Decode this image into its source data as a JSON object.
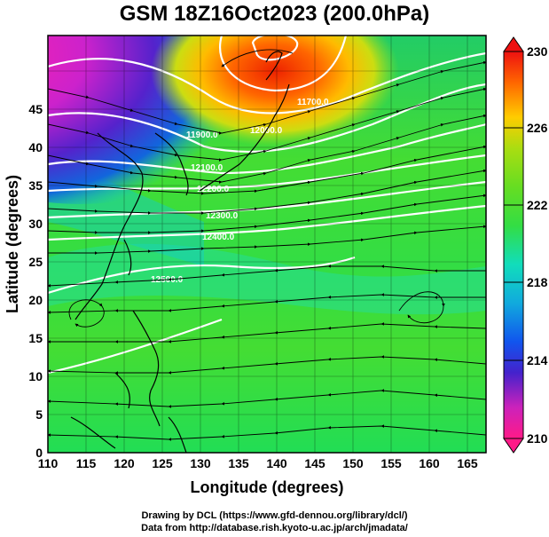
{
  "title": "GSM 18Z16Oct2023 (200.0hPa)",
  "map": {
    "xlabel": "Longitude (degrees)",
    "ylabel": "Latitude (degrees)",
    "x_ticks": [
      "110",
      "115",
      "120",
      "125",
      "130",
      "135",
      "140",
      "145",
      "150",
      "155",
      "160",
      "165"
    ],
    "y_ticks": [
      "0",
      "5",
      "10",
      "15",
      "20",
      "25",
      "30",
      "35",
      "40",
      "45"
    ],
    "contour_labels": [
      "11700.0",
      "11900.0",
      "12000.0",
      "12100.0",
      "12200.0",
      "12300.0",
      "12400.0",
      "12500.0"
    ]
  },
  "colorbar": {
    "labels": [
      "230",
      "226",
      "222",
      "218",
      "214",
      "210"
    ],
    "colors": [
      "#ff1a66",
      "#ee2277",
      "#cc22aa",
      "#6a22d0",
      "#2233cc",
      "#1188ee",
      "#11ccdd",
      "#22dd88",
      "#44dd22",
      "#88dd22",
      "#ccdd11",
      "#ffaa00",
      "#ff6600",
      "#ee2200",
      "#cc1111"
    ]
  },
  "credits": {
    "line1": "Drawing by DCL (https://www.gfd-dennou.org/library/dcl/)",
    "line2": "Data from http://database.rish.kyoto-u.ac.jp/arch/jmadata/"
  }
}
